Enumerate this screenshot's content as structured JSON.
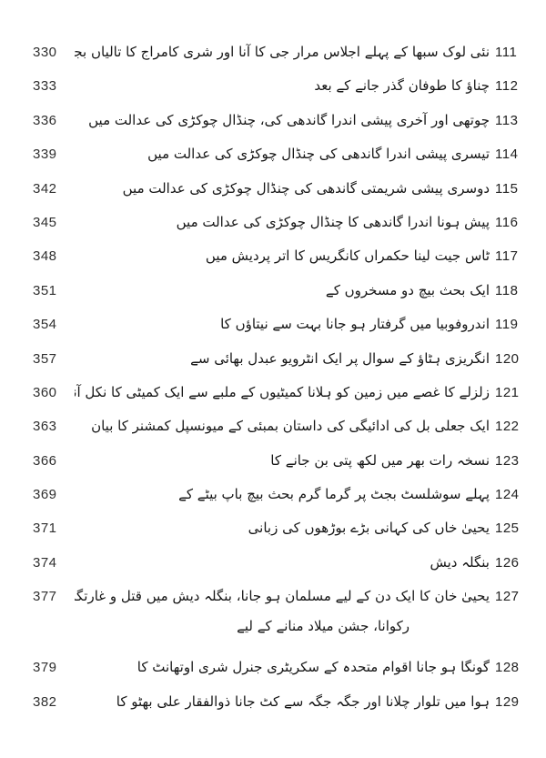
{
  "page": {
    "background_color": "#ffffff",
    "text_color": "#161616",
    "number_color": "#232323",
    "kind": "scanned-urdu-book-table-of-contents"
  },
  "toc": {
    "rows": [
      {
        "serial": "111",
        "title": "نئی لوک سبھا کے پہلے اجلاس مرار جی کا آنا اور شری کامراج کا تالیاں بجانا",
        "title_line2": "",
        "page": "330"
      },
      {
        "serial": "112",
        "title": "چناؤ کا طوفان گذر جانے کے بعد",
        "title_line2": "",
        "page": "333"
      },
      {
        "serial": "113",
        "title": "چوتھی اور آخری پیشی اندرا گاندھی کی، چنڈال چوکڑی کی عدالت میں",
        "title_line2": "",
        "page": "336"
      },
      {
        "serial": "114",
        "title": "تیسری پیشی اندرا گاندھی کی چنڈال چوکڑی کی عدالت میں",
        "title_line2": "",
        "page": "339"
      },
      {
        "serial": "115",
        "title": "دوسری پیشی شریمتی گاندھی کی چنڈال چوکڑی کی عدالت میں",
        "title_line2": "",
        "page": "342"
      },
      {
        "serial": "116",
        "title": "پیش ہونا اندرا گاندھی کا چنڈال چوکڑی کی عدالت میں",
        "title_line2": "",
        "page": "345"
      },
      {
        "serial": "117",
        "title": "ٹاس جیت لینا حکمراں کانگریس کا اتر پردیش میں",
        "title_line2": "",
        "page": "348"
      },
      {
        "serial": "118",
        "title": "ایک بحث بیچ دو مسخروں کے",
        "title_line2": "",
        "page": "351"
      },
      {
        "serial": "119",
        "title": "اندروفوبیا میں گرفتار ہو جانا بہت سے نیتاؤں کا",
        "title_line2": "",
        "page": "354"
      },
      {
        "serial": "120",
        "title": "انگریزی ہٹاؤ کے سوال پر ایک انٹرویو عبدل بھائی سے",
        "title_line2": "",
        "page": "357"
      },
      {
        "serial": "121",
        "title": "زلزلے کا غصے میں زمین کو ہلانا کمیٹیوں کے ملبے سے ایک کمیٹی کا نکل آنا",
        "title_line2": "",
        "page": "360"
      },
      {
        "serial": "122",
        "title": "ایک جعلی بل کی ادائیگی کی داستان بمبئی کے میونسپل کمشنر کا بیان",
        "title_line2": "",
        "page": "363"
      },
      {
        "serial": "123",
        "title": "نسخہ رات بھر میں لکھ پتی بن جانے کا",
        "title_line2": "",
        "page": "366"
      },
      {
        "serial": "124",
        "title": "پہلے سوشلسٹ بجٹ پر گرما گرم بحث بیچ باپ بیٹے کے",
        "title_line2": "",
        "page": "369"
      },
      {
        "serial": "125",
        "title": "یحییٰ خاں کی کہانی بڑے بوڑھوں کی زبانی",
        "title_line2": "",
        "page": "371"
      },
      {
        "serial": "126",
        "title": "بنگلہ دیش",
        "title_line2": "",
        "page": "374"
      },
      {
        "serial": "127",
        "title": "یحییٰ خان کا ایک دن کے لیے مسلمان ہو جانا، بنگلہ دیش میں قتل و غارتگری",
        "title_line2": "رکوانا، جشن میلاد منانے کے لیے",
        "page": "377"
      },
      {
        "serial": "128",
        "title": "گونگا ہو جانا اقوام متحدہ کے سکریٹری جنرل شری اوتھانٹ کا",
        "title_line2": "",
        "page": "379"
      },
      {
        "serial": "129",
        "title": "ہوا میں تلوار چلانا اور جگہ جگہ سے کٹ جانا ذوالفقار علی بھٹو کا",
        "title_line2": "",
        "page": "382"
      }
    ]
  }
}
